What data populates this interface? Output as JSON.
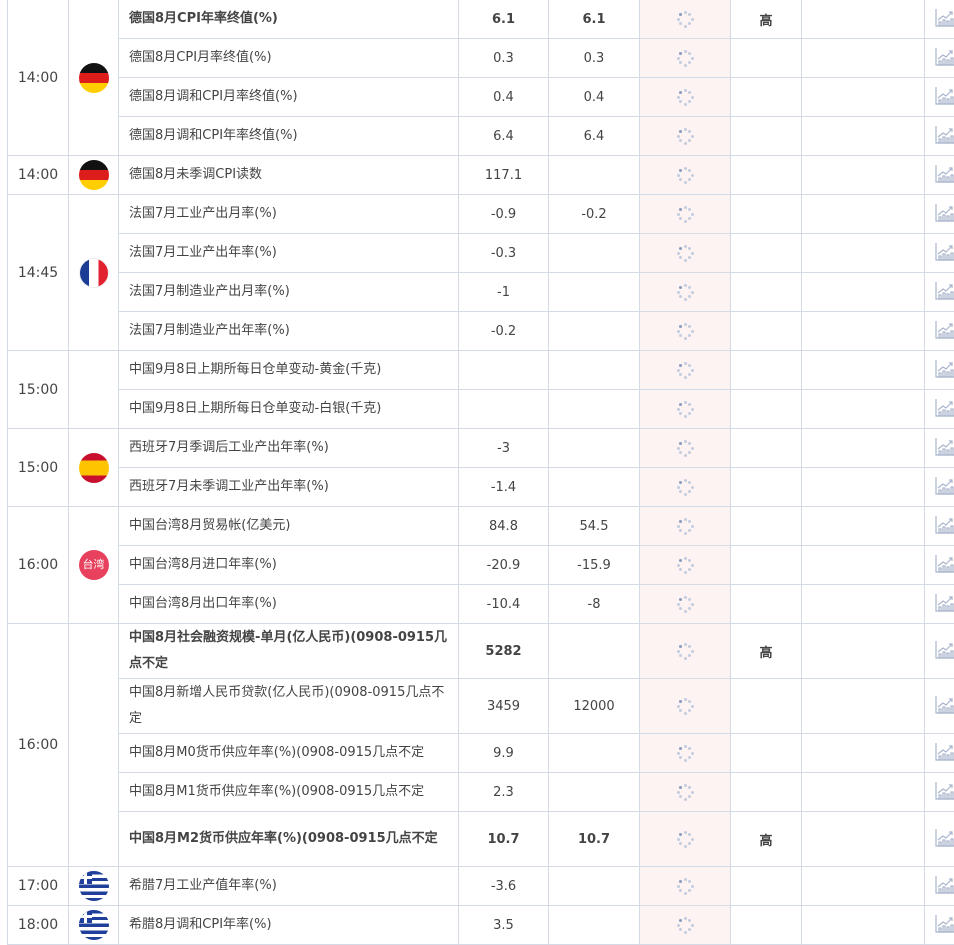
{
  "colors": {
    "highlight": "#b23a1e",
    "actual_bg": "#fdf3f3",
    "border": "#d4dae6"
  },
  "groups": [
    {
      "time": "14:00",
      "flag": "germany-flag",
      "rows": [
        {
          "event": "德国8月CPI年率终值(%)",
          "previous": "6.1",
          "forecast": "6.1",
          "actual": "",
          "importance": "高",
          "high": true
        },
        {
          "event": "德国8月CPI月率终值(%)",
          "previous": "0.3",
          "forecast": "0.3",
          "actual": "",
          "importance": ""
        },
        {
          "event": "德国8月调和CPI月率终值(%)",
          "previous": "0.4",
          "forecast": "0.4",
          "actual": "",
          "importance": ""
        },
        {
          "event": "德国8月调和CPI年率终值(%)",
          "previous": "6.4",
          "forecast": "6.4",
          "actual": "",
          "importance": ""
        }
      ]
    },
    {
      "time": "14:00",
      "flag": "germany-flag",
      "rows": [
        {
          "event": "德国8月未季调CPI读数",
          "previous": "117.1",
          "forecast": "",
          "actual": "",
          "importance": ""
        }
      ]
    },
    {
      "time": "14:45",
      "flag": "france-flag",
      "rows": [
        {
          "event": "法国7月工业产出月率(%)",
          "previous": "-0.9",
          "forecast": "-0.2",
          "actual": "",
          "importance": ""
        },
        {
          "event": "法国7月工业产出年率(%)",
          "previous": "-0.3",
          "forecast": "",
          "actual": "",
          "importance": ""
        },
        {
          "event": "法国7月制造业产出月率(%)",
          "previous": "-1",
          "forecast": "",
          "actual": "",
          "importance": ""
        },
        {
          "event": "法国7月制造业产出年率(%)",
          "previous": "-0.2",
          "forecast": "",
          "actual": "",
          "importance": ""
        }
      ]
    },
    {
      "time": "15:00",
      "flag": "",
      "rows": [
        {
          "event": "中国9月8日上期所每日仓单变动-黄金(千克)",
          "previous": "",
          "forecast": "",
          "actual": "",
          "importance": ""
        },
        {
          "event": "中国9月8日上期所每日仓单变动-白银(千克)",
          "previous": "",
          "forecast": "",
          "actual": "",
          "importance": ""
        }
      ]
    },
    {
      "time": "15:00",
      "flag": "spain-flag",
      "rows": [
        {
          "event": "西班牙7月季调后工业产出年率(%)",
          "previous": "-3",
          "forecast": "",
          "actual": "",
          "importance": ""
        },
        {
          "event": "西班牙7月未季调工业产出年率(%)",
          "previous": "-1.4",
          "forecast": "",
          "actual": "",
          "importance": ""
        }
      ]
    },
    {
      "time": "16:00",
      "flag": "taiwan-badge",
      "flag_text": "台湾",
      "rows": [
        {
          "event": "中国台湾8月贸易帐(亿美元)",
          "previous": "84.8",
          "forecast": "54.5",
          "actual": "",
          "importance": ""
        },
        {
          "event": "中国台湾8月进口年率(%)",
          "previous": "-20.9",
          "forecast": "-15.9",
          "actual": "",
          "importance": ""
        },
        {
          "event": "中国台湾8月出口年率(%)",
          "previous": "-10.4",
          "forecast": "-8",
          "actual": "",
          "importance": ""
        }
      ]
    },
    {
      "time": "16:00",
      "flag": "",
      "rows": [
        {
          "event": "中国8月社会融资规模-单月(亿人民币)(0908-0915几点不定",
          "previous": "5282",
          "forecast": "",
          "actual": "",
          "importance": "高",
          "high": true,
          "tall": true
        },
        {
          "event": "中国8月新增人民币贷款(亿人民币)(0908-0915几点不定",
          "previous": "3459",
          "forecast": "12000",
          "actual": "",
          "importance": "",
          "tall": true
        },
        {
          "event": "中国8月M0货币供应年率(%)(0908-0915几点不定",
          "previous": "9.9",
          "forecast": "",
          "actual": "",
          "importance": ""
        },
        {
          "event": "中国8月M1货币供应年率(%)(0908-0915几点不定",
          "previous": "2.3",
          "forecast": "",
          "actual": "",
          "importance": ""
        },
        {
          "event": "中国8月M2货币供应年率(%)(0908-0915几点不定",
          "previous": "10.7",
          "forecast": "10.7",
          "actual": "",
          "importance": "高",
          "high": true,
          "tall": true
        }
      ]
    },
    {
      "time": "17:00",
      "flag": "greece-flag",
      "rows": [
        {
          "event": "希腊7月工业产值年率(%)",
          "previous": "-3.6",
          "forecast": "",
          "actual": "",
          "importance": ""
        }
      ]
    },
    {
      "time": "18:00",
      "flag": "greece-flag",
      "rows": [
        {
          "event": "希腊8月调和CPI年率(%)",
          "previous": "3.5",
          "forecast": "",
          "actual": "",
          "importance": ""
        }
      ]
    }
  ]
}
